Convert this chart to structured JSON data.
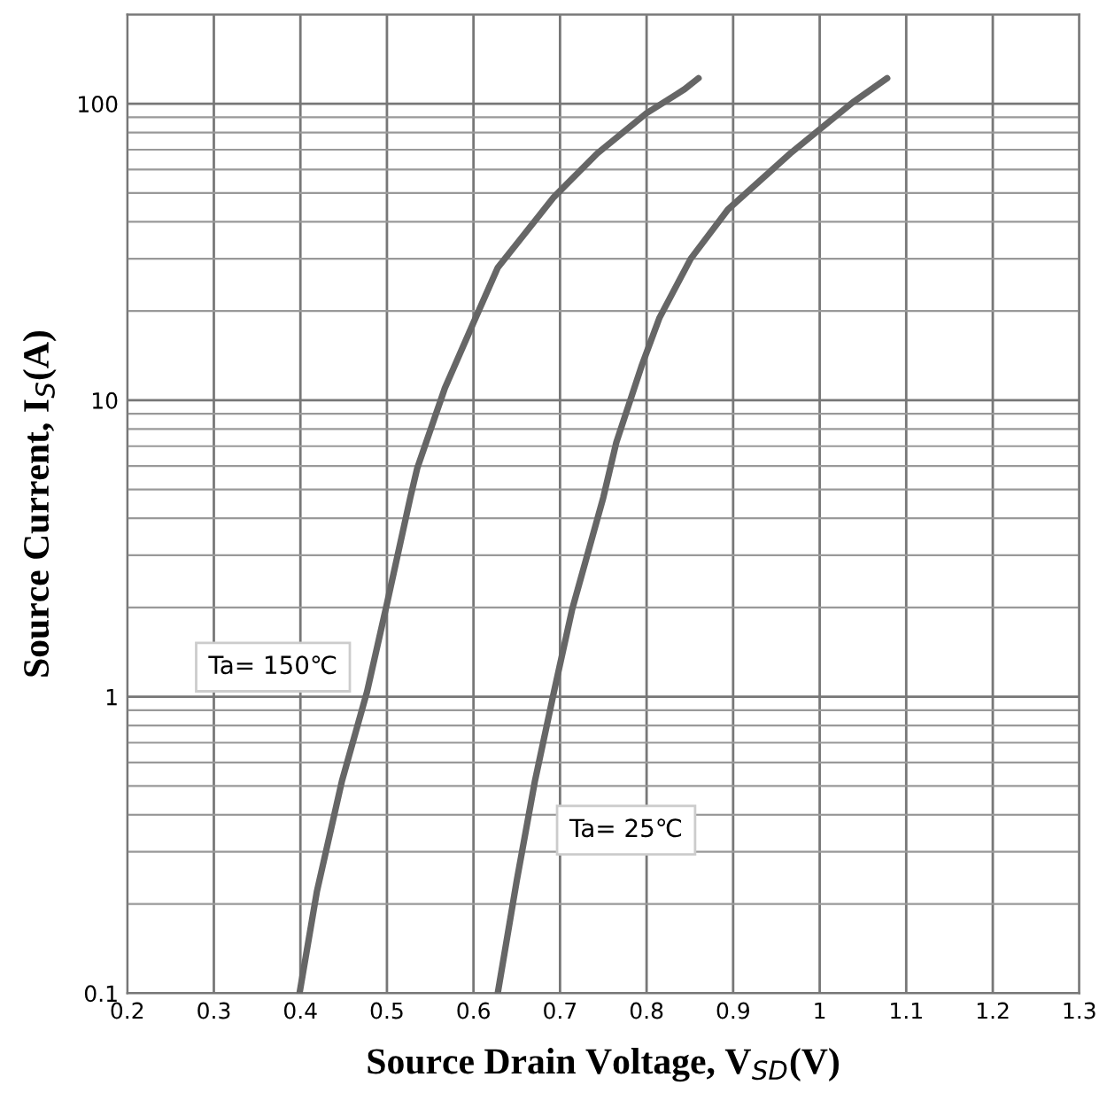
{
  "chart_data": {
    "type": "line",
    "xlabel": "Source Drain Voltage, V$_{SD}$(V)",
    "ylabel": "Source Current, I$_{S}$(A)",
    "log": "y",
    "grid": true,
    "legend": false,
    "marker": "none",
    "line_style": "solid",
    "xlim": [
      0.2,
      1.3
    ],
    "xticks": [
      0.2,
      0.3,
      0.4,
      0.5,
      0.6,
      0.7,
      0.8,
      0.9,
      1,
      1.1,
      1.2,
      1.3
    ],
    "ylim": [
      0.1,
      200
    ],
    "yticks": [
      0.1,
      1,
      10,
      100
    ],
    "series": [
      {
        "name": "Ta= 150℃",
        "color": "#666666",
        "x": [
          0.399,
          0.419,
          0.448,
          0.477,
          0.5,
          0.527,
          0.535,
          0.567,
          0.599,
          0.628,
          0.693,
          0.743,
          0.8,
          0.844,
          0.86
        ],
        "values": [
          0.1,
          0.22,
          0.52,
          1.04,
          2.06,
          4.7,
          5.9,
          11,
          18,
          28,
          48.5,
          68,
          93,
          112,
          122
        ]
      },
      {
        "name": "Ta= 25℃",
        "color": "#666666",
        "x": [
          0.628,
          0.65,
          0.671,
          0.693,
          0.714,
          0.75,
          0.765,
          0.794,
          0.815,
          0.851,
          0.894,
          0.966,
          1.038,
          1.078
        ],
        "values": [
          0.1,
          0.24,
          0.52,
          1.04,
          1.97,
          4.7,
          7.2,
          13,
          19,
          30,
          44,
          68,
          101,
          122
        ]
      }
    ]
  }
}
